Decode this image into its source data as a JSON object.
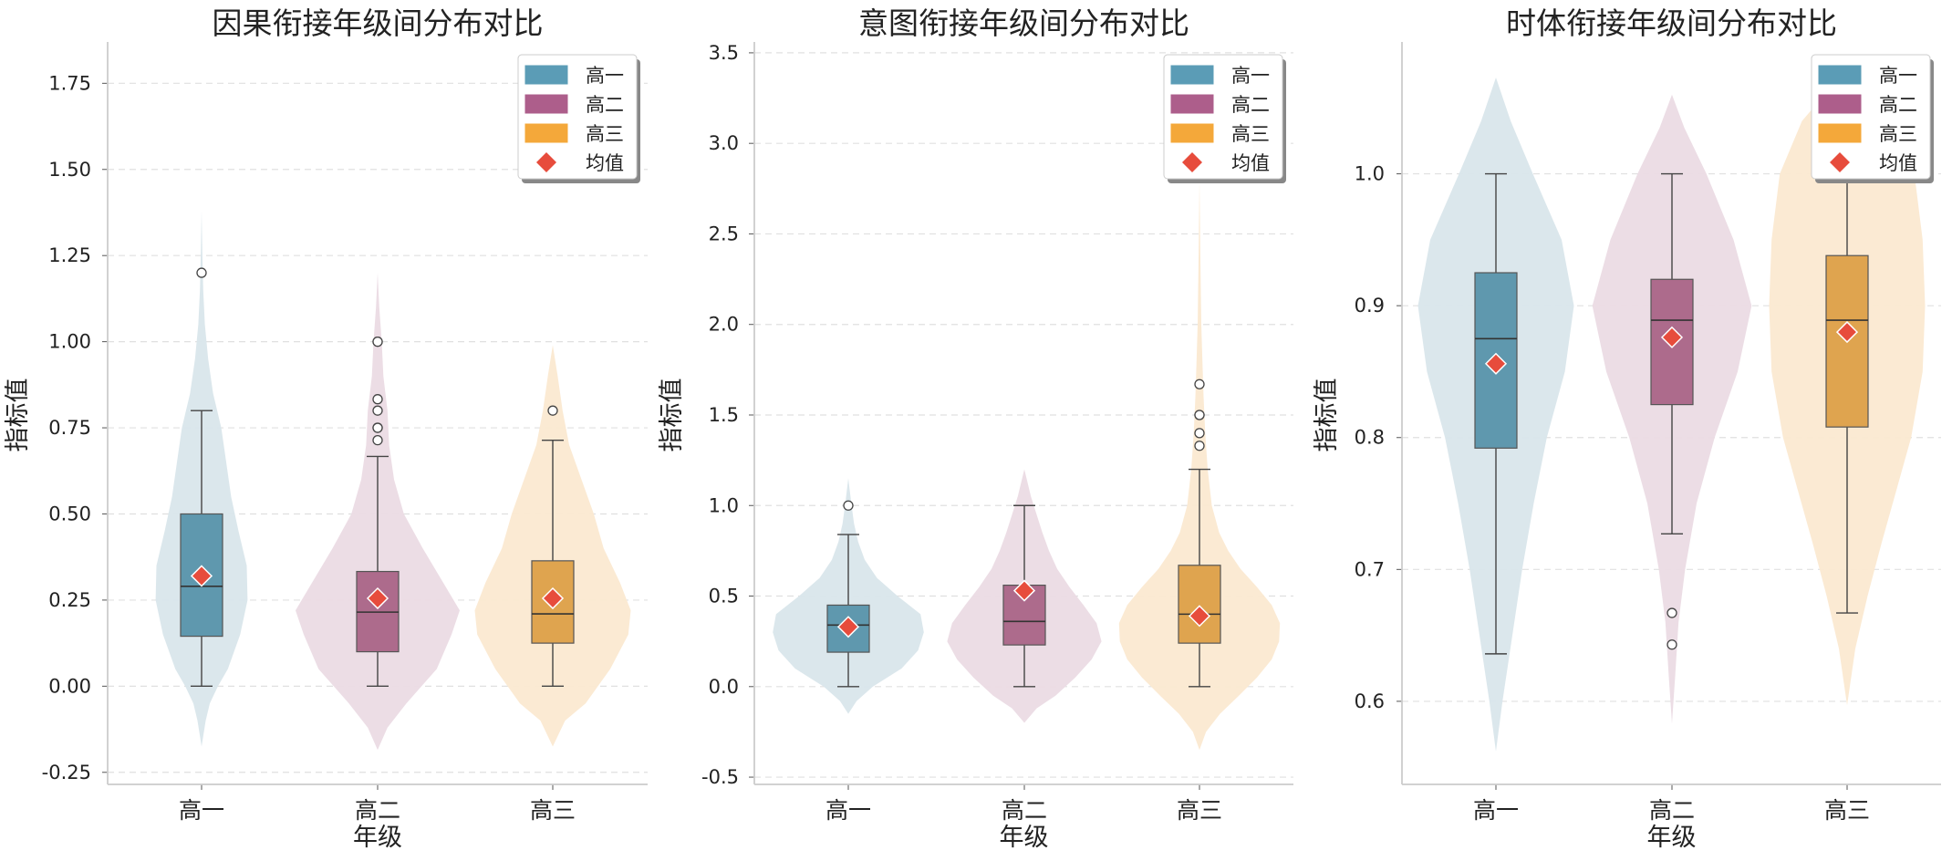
{
  "chart_data": [
    {
      "type": "violin_box",
      "title": "因果衔接年级间分布对比",
      "xlabel": "年级",
      "ylabel": "指标值",
      "categories": [
        "高一",
        "高二",
        "高三"
      ],
      "ylim": [
        -0.285,
        1.87
      ],
      "yticks": [
        "-0.25",
        "0.00",
        "0.25",
        "0.50",
        "0.75",
        "1.00",
        "1.25",
        "1.50",
        "1.75"
      ],
      "yticks_values": [
        -0.25,
        0,
        0.25,
        0.5,
        0.75,
        1.0,
        1.25,
        1.5,
        1.75
      ],
      "grid": "y-dashed",
      "legend_position": "upper right",
      "series": [
        {
          "category": "高一",
          "q1": 0.145,
          "median": 0.29,
          "q3": 0.5,
          "whisker_low": 0.0,
          "whisker_high": 0.8,
          "mean": 0.32,
          "outliers": [
            1.2
          ],
          "violin": {
            "ymin": -0.175,
            "ymax": 1.38,
            "profile": [
              [
                -0.175,
                0.0
              ],
              [
                -0.1,
                0.05
              ],
              [
                -0.05,
                0.1
              ],
              [
                0.0,
                0.2
              ],
              [
                0.05,
                0.32
              ],
              [
                0.15,
                0.47
              ],
              [
                0.25,
                0.56
              ],
              [
                0.35,
                0.55
              ],
              [
                0.45,
                0.45
              ],
              [
                0.55,
                0.36
              ],
              [
                0.65,
                0.3
              ],
              [
                0.75,
                0.24
              ],
              [
                0.85,
                0.14
              ],
              [
                0.95,
                0.08
              ],
              [
                1.05,
                0.04
              ],
              [
                1.15,
                0.02
              ],
              [
                1.25,
                0.01
              ],
              [
                1.38,
                0.0
              ]
            ]
          }
        },
        {
          "category": "高二",
          "q1": 0.1,
          "median": 0.215,
          "q3": 0.333,
          "whisker_low": 0.0,
          "whisker_high": 0.667,
          "mean": 0.255,
          "outliers": [
            0.714,
            0.75,
            0.75,
            0.8,
            0.833,
            1.0,
            1.0
          ],
          "violin": {
            "ymin": -0.185,
            "ymax": 1.2,
            "profile": [
              [
                -0.185,
                0.0
              ],
              [
                -0.12,
                0.12
              ],
              [
                -0.05,
                0.35
              ],
              [
                0.05,
                0.72
              ],
              [
                0.15,
                0.9
              ],
              [
                0.22,
                1.0
              ],
              [
                0.3,
                0.8
              ],
              [
                0.4,
                0.55
              ],
              [
                0.5,
                0.32
              ],
              [
                0.6,
                0.2
              ],
              [
                0.7,
                0.14
              ],
              [
                0.8,
                0.12
              ],
              [
                0.9,
                0.07
              ],
              [
                1.0,
                0.05
              ],
              [
                1.1,
                0.02
              ],
              [
                1.2,
                0.0
              ]
            ]
          }
        },
        {
          "category": "高三",
          "q1": 0.125,
          "median": 0.21,
          "q3": 0.364,
          "whisker_low": 0.0,
          "whisker_high": 0.714,
          "mean": 0.255,
          "outliers": [
            0.8
          ],
          "violin": {
            "ymin": -0.175,
            "ymax": 0.99,
            "profile": [
              [
                -0.175,
                0.0
              ],
              [
                -0.1,
                0.15
              ],
              [
                -0.05,
                0.4
              ],
              [
                0.05,
                0.7
              ],
              [
                0.15,
                0.92
              ],
              [
                0.22,
                0.95
              ],
              [
                0.3,
                0.82
              ],
              [
                0.4,
                0.62
              ],
              [
                0.5,
                0.5
              ],
              [
                0.6,
                0.35
              ],
              [
                0.7,
                0.2
              ],
              [
                0.8,
                0.12
              ],
              [
                0.9,
                0.06
              ],
              [
                0.99,
                0.0
              ]
            ]
          }
        }
      ]
    },
    {
      "type": "violin_box",
      "title": "意图衔接年级间分布对比",
      "xlabel": "年级",
      "ylabel": "指标值",
      "categories": [
        "高一",
        "高二",
        "高三"
      ],
      "ylim": [
        -0.54,
        3.56
      ],
      "yticks": [
        "-0.5",
        "0.0",
        "0.5",
        "1.0",
        "1.5",
        "2.0",
        "2.5",
        "3.0",
        "3.5"
      ],
      "yticks_values": [
        -0.5,
        0,
        0.5,
        1.0,
        1.5,
        2.0,
        2.5,
        3.0,
        3.5
      ],
      "grid": "y-dashed",
      "legend_position": "upper right",
      "series": [
        {
          "category": "高一",
          "q1": 0.19,
          "median": 0.34,
          "q3": 0.45,
          "whisker_low": 0.0,
          "whisker_high": 0.84,
          "mean": 0.33,
          "outliers": [
            1.0
          ],
          "violin": {
            "ymin": -0.15,
            "ymax": 1.15,
            "profile": [
              [
                -0.15,
                0.0
              ],
              [
                -0.08,
                0.1
              ],
              [
                0.0,
                0.3
              ],
              [
                0.1,
                0.65
              ],
              [
                0.2,
                0.85
              ],
              [
                0.3,
                0.92
              ],
              [
                0.4,
                0.88
              ],
              [
                0.5,
                0.6
              ],
              [
                0.6,
                0.35
              ],
              [
                0.7,
                0.2
              ],
              [
                0.8,
                0.12
              ],
              [
                0.9,
                0.07
              ],
              [
                1.0,
                0.04
              ],
              [
                1.15,
                0.0
              ]
            ]
          }
        },
        {
          "category": "高二",
          "q1": 0.23,
          "median": 0.36,
          "q3": 0.56,
          "whisker_low": 0.0,
          "whisker_high": 1.0,
          "mean": 0.53,
          "outliers": [],
          "violin": {
            "ymin": -0.2,
            "ymax": 1.2,
            "profile": [
              [
                -0.2,
                0.0
              ],
              [
                -0.12,
                0.15
              ],
              [
                -0.05,
                0.38
              ],
              [
                0.05,
                0.62
              ],
              [
                0.15,
                0.82
              ],
              [
                0.25,
                0.94
              ],
              [
                0.35,
                0.88
              ],
              [
                0.45,
                0.72
              ],
              [
                0.55,
                0.55
              ],
              [
                0.65,
                0.4
              ],
              [
                0.75,
                0.3
              ],
              [
                0.85,
                0.22
              ],
              [
                0.95,
                0.15
              ],
              [
                1.05,
                0.08
              ],
              [
                1.2,
                0.0
              ]
            ]
          }
        },
        {
          "category": "高三",
          "q1": 0.24,
          "median": 0.4,
          "q3": 0.67,
          "whisker_low": 0.0,
          "whisker_high": 1.2,
          "mean": 0.39,
          "outliers": [
            1.33,
            1.4,
            1.5,
            1.5,
            1.67
          ],
          "violin": {
            "ymin": -0.35,
            "ymax": 2.8,
            "profile": [
              [
                -0.35,
                0.0
              ],
              [
                -0.25,
                0.08
              ],
              [
                -0.15,
                0.25
              ],
              [
                -0.05,
                0.48
              ],
              [
                0.05,
                0.7
              ],
              [
                0.15,
                0.88
              ],
              [
                0.25,
                0.97
              ],
              [
                0.35,
                0.98
              ],
              [
                0.45,
                0.88
              ],
              [
                0.55,
                0.7
              ],
              [
                0.65,
                0.5
              ],
              [
                0.75,
                0.35
              ],
              [
                0.85,
                0.24
              ],
              [
                1.0,
                0.15
              ],
              [
                1.2,
                0.1
              ],
              [
                1.4,
                0.07
              ],
              [
                1.6,
                0.05
              ],
              [
                1.8,
                0.035
              ],
              [
                2.0,
                0.022
              ],
              [
                2.4,
                0.01
              ],
              [
                2.8,
                0.0
              ]
            ]
          }
        }
      ]
    },
    {
      "type": "violin_box",
      "title": "时体衔接年级间分布对比",
      "xlabel": "年级",
      "ylabel": "指标值",
      "categories": [
        "高一",
        "高二",
        "高三"
      ],
      "ylim": [
        0.537,
        1.1
      ],
      "yticks": [
        "0.6",
        "0.7",
        "0.8",
        "0.9",
        "1.0"
      ],
      "yticks_values": [
        0.6,
        0.7,
        0.8,
        0.9,
        1.0
      ],
      "grid": "y-dashed",
      "legend_position": "upper right",
      "series": [
        {
          "category": "高一",
          "q1": 0.792,
          "median": 0.875,
          "q3": 0.925,
          "whisker_low": 0.636,
          "whisker_high": 1.0,
          "mean": 0.856,
          "outliers": [],
          "violin": {
            "ymin": 0.562,
            "ymax": 1.073,
            "profile": [
              [
                0.562,
                0.0
              ],
              [
                0.6,
                0.08
              ],
              [
                0.65,
                0.2
              ],
              [
                0.7,
                0.32
              ],
              [
                0.75,
                0.46
              ],
              [
                0.8,
                0.62
              ],
              [
                0.85,
                0.84
              ],
              [
                0.9,
                0.95
              ],
              [
                0.95,
                0.8
              ],
              [
                1.0,
                0.45
              ],
              [
                1.04,
                0.18
              ],
              [
                1.073,
                0.0
              ]
            ]
          }
        },
        {
          "category": "高二",
          "q1": 0.825,
          "median": 0.889,
          "q3": 0.92,
          "whisker_low": 0.727,
          "whisker_high": 1.0,
          "mean": 0.876,
          "outliers": [
            0.667,
            0.643
          ],
          "violin": {
            "ymin": 0.583,
            "ymax": 1.06,
            "profile": [
              [
                0.583,
                0.0
              ],
              [
                0.62,
                0.04
              ],
              [
                0.66,
                0.08
              ],
              [
                0.7,
                0.16
              ],
              [
                0.75,
                0.3
              ],
              [
                0.8,
                0.52
              ],
              [
                0.85,
                0.8
              ],
              [
                0.9,
                0.97
              ],
              [
                0.95,
                0.75
              ],
              [
                1.0,
                0.42
              ],
              [
                1.035,
                0.15
              ],
              [
                1.06,
                0.0
              ]
            ]
          }
        },
        {
          "category": "高三",
          "q1": 0.808,
          "median": 0.889,
          "q3": 0.938,
          "whisker_low": 0.667,
          "whisker_high": 1.0,
          "mean": 0.88,
          "outliers": [],
          "violin": {
            "ymin": 0.597,
            "ymax": 1.08,
            "profile": [
              [
                0.597,
                0.0
              ],
              [
                0.64,
                0.1
              ],
              [
                0.68,
                0.25
              ],
              [
                0.72,
                0.42
              ],
              [
                0.76,
                0.6
              ],
              [
                0.8,
                0.78
              ],
              [
                0.85,
                0.92
              ],
              [
                0.9,
                0.95
              ],
              [
                0.95,
                0.92
              ],
              [
                1.0,
                0.82
              ],
              [
                1.04,
                0.55
              ],
              [
                1.08,
                0.0
              ]
            ]
          }
        }
      ]
    }
  ],
  "legend": {
    "items": [
      {
        "label": "高一",
        "kind": "patch",
        "color": "#5b9cb6"
      },
      {
        "label": "高二",
        "kind": "patch",
        "color": "#ad5e8b"
      },
      {
        "label": "高三",
        "kind": "patch",
        "color": "#f4a83a"
      },
      {
        "label": "均值",
        "kind": "diamond",
        "color": "#e74c3c"
      }
    ]
  },
  "colors": {
    "高一": {
      "box": "#5f98ae",
      "violin": "#d9e6eb"
    },
    "高二": {
      "box": "#ad6b8c",
      "violin": "#ebdbe4"
    },
    "高三": {
      "box": "#dfa44f",
      "violin": "#fbe9d1"
    },
    "mean_marker": "#e74c3c",
    "grid": "#e0e0e0",
    "axis": "#cccccc"
  }
}
